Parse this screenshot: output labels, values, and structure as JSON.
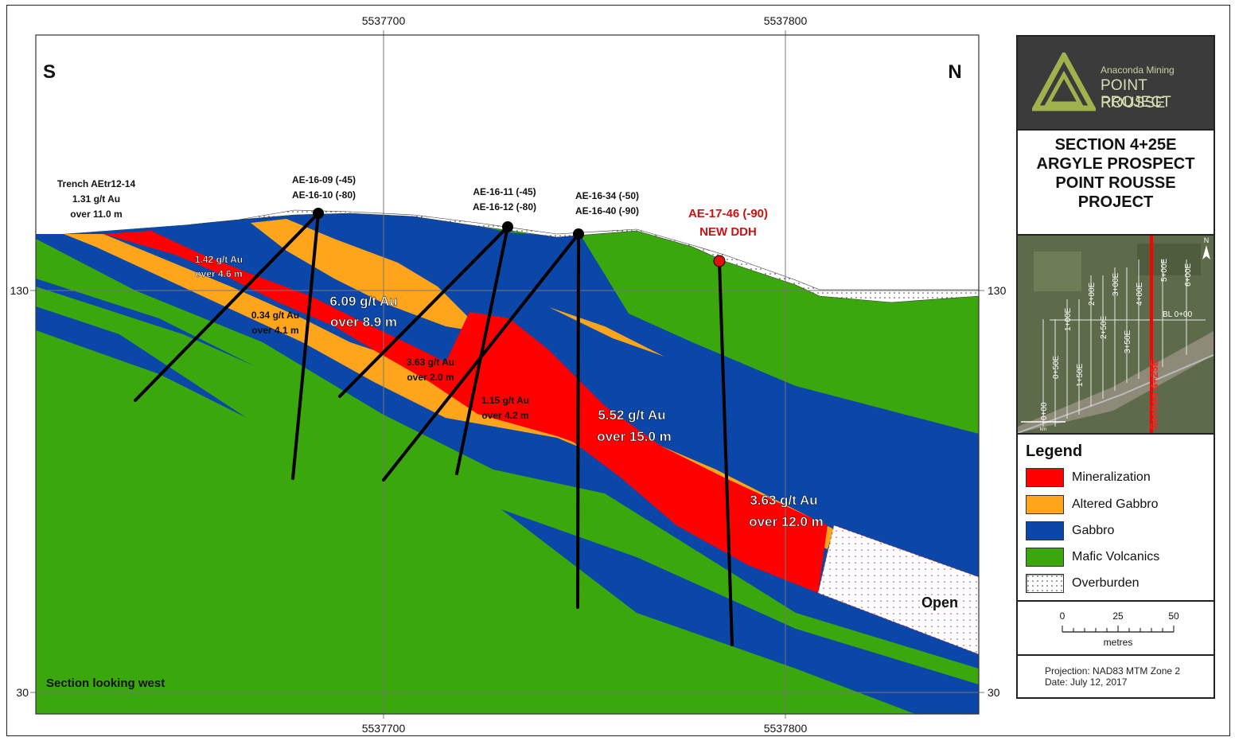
{
  "section": {
    "direction_left": "S",
    "direction_right": "N",
    "footer_note": "Section looking west",
    "open_label": "Open",
    "easting_ticks_top": [
      "5537700",
      "5537800"
    ],
    "easting_ticks_bottom": [
      "5537700",
      "5537800"
    ],
    "elevation_ticks_left": [
      "130",
      "30"
    ],
    "elevation_ticks_right": [
      "130",
      "30"
    ]
  },
  "labels": {
    "trench": [
      "Trench AEtr12-14",
      "1.31 g/t Au",
      "over 11.0 m"
    ],
    "holes_09_10": [
      "AE-16-09 (-45)",
      "AE-16-10 (-80)"
    ],
    "holes_11_12": [
      "AE-16-11 (-45)",
      "AE-16-12 (-80)"
    ],
    "holes_34_40": [
      "AE-16-34 (-50)",
      "AE-16-40 (-90)"
    ],
    "new_hole": [
      "AE-17-46 (-90)",
      "NEW DDH"
    ],
    "intercept_a": [
      "1.42 g/t Au",
      "over 4.6 m"
    ],
    "intercept_b": [
      "0.34 g/t Au",
      "over 4.1 m"
    ],
    "intercept_c": [
      "6.09 g/t Au",
      "over 8.9 m"
    ],
    "intercept_d": [
      "3.63 g/t Au",
      "over 2.0 m"
    ],
    "intercept_e": [
      "1.15 g/t Au",
      "over 4.2 m"
    ],
    "intercept_f": [
      "5.52 g/t Au",
      "over 15.0 m"
    ],
    "intercept_g": [
      "3.63 g/t Au",
      "over 12.0 m"
    ]
  },
  "sidebar": {
    "logo_company": "Anaconda Mining",
    "logo_line1": "POINT ROUSSE",
    "logo_line2": "PROJECT",
    "title": [
      "SECTION 4+25E",
      "ARGYLE PROSPECT",
      "POINT ROUSSE",
      "PROJECT"
    ],
    "location_map": {
      "sections": [
        "0+00",
        "0+50E",
        "1+00E",
        "1+50E",
        "2+00E",
        "2+50E",
        "3+00E",
        "3+50E",
        "4+00E",
        "4+25E",
        "5+00E",
        "6+00E"
      ],
      "baseline": "BL 0+00",
      "highlight": "Section 4+25E",
      "north": "N",
      "scale_unit": "km"
    },
    "legend": {
      "title": "Legend",
      "items": [
        {
          "label": "Mineralization",
          "color": "#ff0000"
        },
        {
          "label": "Altered Gabbro",
          "color": "#ffa51c"
        },
        {
          "label": "Gabbro",
          "color": "#0a47a8"
        },
        {
          "label": "Mafic Volcanics",
          "color": "#3aa80c"
        },
        {
          "label": "Overburden",
          "color": "#ffffff"
        }
      ]
    },
    "scale": {
      "ticks": [
        "0",
        "25",
        "50"
      ],
      "unit": "metres"
    },
    "projection": "Projection: NAD83 MTM Zone 2",
    "date": "Date: July 12, 2017"
  },
  "colors": {
    "mineralization": "#ff0000",
    "altered_gabbro": "#ffa51c",
    "gabbro": "#0a47a8",
    "mafic_volcanics": "#3aa80c",
    "new_hole": "#e01010",
    "new_hole_text": "#cc1111"
  }
}
